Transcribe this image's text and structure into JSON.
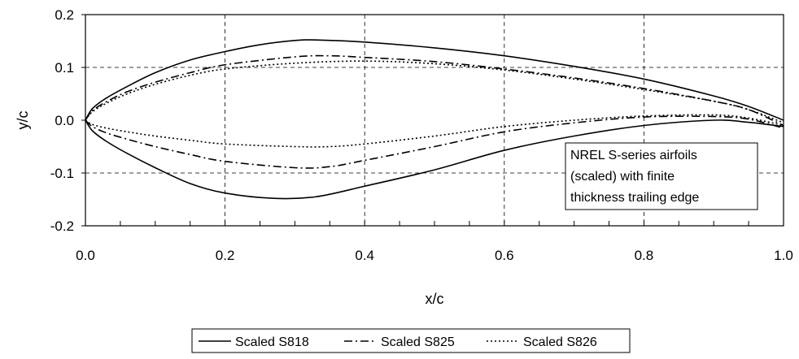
{
  "chart_data": {
    "type": "line",
    "title": "",
    "xlabel": "x/c",
    "ylabel": "y/c",
    "xlim": [
      0.0,
      1.0
    ],
    "ylim": [
      -0.2,
      0.2
    ],
    "x_ticks": [
      "0.0",
      "0.2",
      "0.4",
      "0.6",
      "0.8",
      "1.0"
    ],
    "y_ticks": [
      "0.2",
      "0.1",
      "0.0",
      "-0.1",
      "-0.2"
    ],
    "grid": "vertical dashed at major x ticks, horizontal dashed at 0.1 and -0.1",
    "legend_position": "bottom-center",
    "annotation_lines": [
      "NREL S-series airfoils",
      "(scaled) with finite",
      "thickness trailing edge"
    ],
    "series": [
      {
        "name": "Scaled S818",
        "style": "solid",
        "upper": [
          [
            0.0,
            0.0
          ],
          [
            0.01,
            0.022
          ],
          [
            0.03,
            0.042
          ],
          [
            0.06,
            0.064
          ],
          [
            0.1,
            0.09
          ],
          [
            0.15,
            0.114
          ],
          [
            0.2,
            0.13
          ],
          [
            0.25,
            0.143
          ],
          [
            0.3,
            0.151
          ],
          [
            0.33,
            0.152
          ],
          [
            0.4,
            0.148
          ],
          [
            0.5,
            0.137
          ],
          [
            0.6,
            0.122
          ],
          [
            0.7,
            0.102
          ],
          [
            0.8,
            0.078
          ],
          [
            0.9,
            0.046
          ],
          [
            0.95,
            0.026
          ],
          [
            1.0,
            0.0
          ]
        ],
        "lower": [
          [
            0.0,
            0.0
          ],
          [
            0.01,
            -0.02
          ],
          [
            0.03,
            -0.04
          ],
          [
            0.06,
            -0.063
          ],
          [
            0.1,
            -0.09
          ],
          [
            0.15,
            -0.12
          ],
          [
            0.2,
            -0.138
          ],
          [
            0.27,
            -0.148
          ],
          [
            0.33,
            -0.145
          ],
          [
            0.4,
            -0.125
          ],
          [
            0.5,
            -0.094
          ],
          [
            0.6,
            -0.057
          ],
          [
            0.7,
            -0.03
          ],
          [
            0.8,
            -0.01
          ],
          [
            0.9,
            0.0
          ],
          [
            0.95,
            -0.004
          ],
          [
            1.0,
            -0.012
          ]
        ]
      },
      {
        "name": "Scaled S825",
        "style": "dash-dot",
        "upper": [
          [
            0.0,
            0.0
          ],
          [
            0.01,
            0.018
          ],
          [
            0.03,
            0.035
          ],
          [
            0.06,
            0.054
          ],
          [
            0.1,
            0.072
          ],
          [
            0.15,
            0.09
          ],
          [
            0.2,
            0.105
          ],
          [
            0.3,
            0.12
          ],
          [
            0.35,
            0.122
          ],
          [
            0.4,
            0.119
          ],
          [
            0.5,
            0.111
          ],
          [
            0.6,
            0.097
          ],
          [
            0.7,
            0.08
          ],
          [
            0.8,
            0.06
          ],
          [
            0.9,
            0.036
          ],
          [
            0.95,
            0.02
          ],
          [
            1.0,
            -0.01
          ]
        ],
        "lower": [
          [
            0.0,
            0.0
          ],
          [
            0.01,
            -0.012
          ],
          [
            0.03,
            -0.024
          ],
          [
            0.06,
            -0.036
          ],
          [
            0.1,
            -0.05
          ],
          [
            0.15,
            -0.065
          ],
          [
            0.2,
            -0.078
          ],
          [
            0.3,
            -0.09
          ],
          [
            0.35,
            -0.088
          ],
          [
            0.4,
            -0.076
          ],
          [
            0.5,
            -0.05
          ],
          [
            0.6,
            -0.022
          ],
          [
            0.7,
            -0.005
          ],
          [
            0.8,
            0.006
          ],
          [
            0.9,
            0.007
          ],
          [
            0.95,
            0.002
          ],
          [
            1.0,
            -0.015
          ]
        ]
      },
      {
        "name": "Scaled S826",
        "style": "dotted",
        "upper": [
          [
            0.0,
            0.0
          ],
          [
            0.01,
            0.016
          ],
          [
            0.03,
            0.032
          ],
          [
            0.06,
            0.05
          ],
          [
            0.1,
            0.068
          ],
          [
            0.15,
            0.085
          ],
          [
            0.2,
            0.097
          ],
          [
            0.3,
            0.108
          ],
          [
            0.4,
            0.112
          ],
          [
            0.5,
            0.107
          ],
          [
            0.6,
            0.095
          ],
          [
            0.7,
            0.078
          ],
          [
            0.8,
            0.058
          ],
          [
            0.9,
            0.036
          ],
          [
            0.95,
            0.02
          ],
          [
            1.0,
            -0.005
          ]
        ],
        "lower": [
          [
            0.0,
            0.0
          ],
          [
            0.01,
            -0.008
          ],
          [
            0.03,
            -0.015
          ],
          [
            0.06,
            -0.022
          ],
          [
            0.1,
            -0.03
          ],
          [
            0.15,
            -0.038
          ],
          [
            0.2,
            -0.045
          ],
          [
            0.3,
            -0.05
          ],
          [
            0.35,
            -0.05
          ],
          [
            0.4,
            -0.045
          ],
          [
            0.5,
            -0.03
          ],
          [
            0.6,
            -0.012
          ],
          [
            0.7,
            0.0
          ],
          [
            0.8,
            0.008
          ],
          [
            0.9,
            0.01
          ],
          [
            0.95,
            0.004
          ],
          [
            1.0,
            -0.01
          ]
        ]
      }
    ]
  }
}
